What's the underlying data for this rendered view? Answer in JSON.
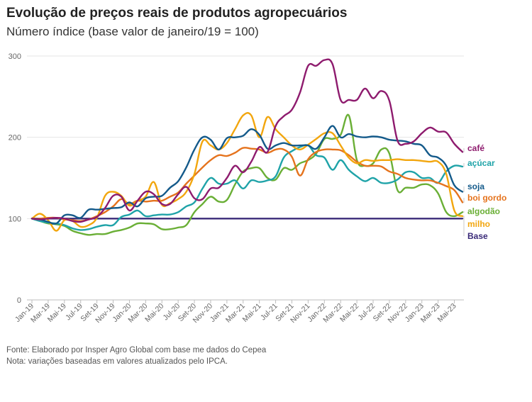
{
  "header": {
    "title": "Evolução de preços reais de produtos agropecuários",
    "subtitle": "Número índice (base valor de janeiro/19 = 100)"
  },
  "footer": {
    "source": "Fonte: Elaborado por Insper Agro Global com base me dados do Cepea",
    "note": "Nota: variações baseadas em valores atualizados pelo IPCA."
  },
  "chart_data": {
    "type": "line",
    "title": "Evolução de preços reais de produtos agropecuários",
    "subtitle": "Número índice (base valor de janeiro/19 = 100)",
    "xlabel": "",
    "ylabel": "",
    "ylim": [
      0,
      300
    ],
    "yticks": [
      0,
      100,
      200,
      300
    ],
    "grid": true,
    "legend": "right, inline labels at line ends",
    "categories": [
      "Jan-19",
      "Feb-19",
      "Mar-19",
      "Apr-19",
      "Mai-19",
      "Jun-19",
      "Jul-19",
      "Aug-19",
      "Set-19",
      "Oct-19",
      "Nov-19",
      "Dec-19",
      "Jan-20",
      "Feb-20",
      "Mar-20",
      "Apr-20",
      "Mai-20",
      "Jun-20",
      "Jul-20",
      "Aug-20",
      "Set-20",
      "Oct-20",
      "Nov-20",
      "Dec-20",
      "Jan-21",
      "Feb-21",
      "Mar-21",
      "Apr-21",
      "Mai-21",
      "Jun-21",
      "Jul-21",
      "Aug-21",
      "Set-21",
      "Oct-21",
      "Nov-21",
      "Dec-21",
      "Jan-22",
      "Feb-22",
      "Mar-22",
      "Apr-22",
      "Mai-22",
      "Jun-22",
      "Jul-22",
      "Aug-22",
      "Set-22",
      "Oct-22",
      "Nov-22",
      "Dec-22",
      "Jan-23",
      "Feb-23",
      "Mar-23",
      "Apr-23",
      "Mai-23",
      "Jun-23"
    ],
    "tick_labels": [
      "Jan-19",
      "Mar-19",
      "Mai-19",
      "Jul-19",
      "Set-19",
      "Nov-19",
      "Jan-20",
      "Mar-20",
      "Mai-20",
      "Jul-20",
      "Set-20",
      "Nov-20",
      "Jan-21",
      "Mar-21",
      "Mai-21",
      "Jul-21",
      "Set-21",
      "Nov-21",
      "Jan-22",
      "Mar-22",
      "Mai-22",
      "Jul-22",
      "Set-22",
      "Nov-22",
      "Jan-23",
      "Mar-23",
      "Mai-23"
    ],
    "series": [
      {
        "name": "café",
        "color": "#8e1b6e",
        "values": [
          100,
          99,
          100,
          101,
          100,
          97,
          96,
          99,
          102,
          113,
          128,
          127,
          110,
          122,
          133,
          130,
          118,
          118,
          130,
          139,
          125,
          124,
          137,
          138,
          150,
          165,
          157,
          170,
          188,
          182,
          214,
          226,
          234,
          255,
          288,
          288,
          295,
          290,
          246,
          246,
          246,
          260,
          248,
          257,
          245,
          196,
          192,
          195,
          205,
          212,
          207,
          206,
          192,
          182
        ]
      },
      {
        "name": "açúcar",
        "color": "#1fa3a8",
        "values": [
          100,
          97,
          95,
          94,
          92,
          88,
          86,
          87,
          90,
          92,
          92,
          102,
          105,
          110,
          103,
          104,
          105,
          105,
          108,
          115,
          120,
          137,
          150,
          143,
          143,
          147,
          137,
          147,
          145,
          147,
          152,
          175,
          183,
          188,
          190,
          178,
          175,
          160,
          172,
          160,
          152,
          146,
          150,
          144,
          144,
          148,
          157,
          157,
          150,
          150,
          144,
          158,
          165,
          164
        ]
      },
      {
        "name": "soja",
        "color": "#145a8a",
        "values": [
          100,
          99,
          96,
          94,
          104,
          104,
          101,
          111,
          111,
          112,
          113,
          114,
          120,
          115,
          125,
          127,
          128,
          138,
          146,
          163,
          185,
          200,
          197,
          185,
          199,
          200,
          202,
          210,
          203,
          186,
          190,
          193,
          190,
          190,
          190,
          186,
          200,
          214,
          200,
          204,
          201,
          200,
          201,
          200,
          197,
          196,
          195,
          192,
          190,
          178,
          175,
          165,
          141,
          133
        ]
      },
      {
        "name": "boi gordo",
        "color": "#e5731d",
        "values": [
          100,
          100,
          101,
          101,
          99,
          98,
          97,
          99,
          103,
          108,
          115,
          124,
          118,
          122,
          121,
          122,
          122,
          127,
          132,
          143,
          153,
          163,
          172,
          178,
          177,
          181,
          187,
          186,
          185,
          181,
          185,
          185,
          176,
          153,
          173,
          182,
          185,
          185,
          184,
          178,
          170,
          165,
          165,
          164,
          158,
          155,
          150,
          148,
          147,
          147,
          144,
          140,
          135,
          120
        ]
      },
      {
        "name": "algodão",
        "color": "#6aaf36",
        "values": [
          100,
          97,
          94,
          93,
          91,
          85,
          82,
          80,
          81,
          81,
          84,
          86,
          89,
          94,
          94,
          93,
          87,
          87,
          89,
          92,
          108,
          118,
          127,
          121,
          123,
          142,
          158,
          162,
          162,
          150,
          148,
          162,
          160,
          168,
          172,
          180,
          198,
          198,
          203,
          227,
          172,
          165,
          168,
          185,
          180,
          135,
          138,
          138,
          142,
          141,
          131,
          108,
          103,
          108
        ]
      },
      {
        "name": "milho",
        "color": "#f2a60e",
        "values": [
          100,
          106,
          98,
          85,
          98,
          97,
          90,
          92,
          101,
          128,
          133,
          128,
          116,
          122,
          127,
          145,
          117,
          119,
          124,
          133,
          155,
          195,
          190,
          185,
          193,
          210,
          227,
          227,
          200,
          225,
          210,
          200,
          190,
          185,
          191,
          198,
          205,
          205,
          190,
          175,
          168,
          172,
          171,
          172,
          172,
          173,
          172,
          172,
          171,
          170,
          170,
          155,
          110,
          103
        ]
      },
      {
        "name": "Base",
        "color": "#3a2a78",
        "values": [
          100,
          100,
          100,
          100,
          100,
          100,
          100,
          100,
          100,
          100,
          100,
          100,
          100,
          100,
          100,
          100,
          100,
          100,
          100,
          100,
          100,
          100,
          100,
          100,
          100,
          100,
          100,
          100,
          100,
          100,
          100,
          100,
          100,
          100,
          100,
          100,
          100,
          100,
          100,
          100,
          100,
          100,
          100,
          100,
          100,
          100,
          100,
          100,
          100,
          100,
          100,
          100,
          100,
          100
        ]
      }
    ]
  }
}
